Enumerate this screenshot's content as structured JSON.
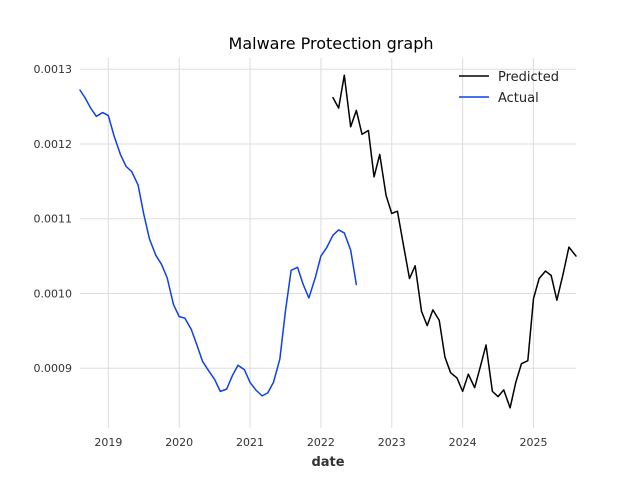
{
  "chart_data": {
    "type": "line",
    "title": "Malware Protection graph",
    "xlabel": "date",
    "ylabel": "",
    "xlim": [
      2018.6,
      2025.6
    ],
    "ylim": [
      0.00082,
      0.001315
    ],
    "grid": true,
    "legend_position": "top-right",
    "x_ticks": [
      2019,
      2020,
      2021,
      2022,
      2023,
      2024,
      2025
    ],
    "x_tick_labels": [
      "2019",
      "2020",
      "2021",
      "2022",
      "2023",
      "2024",
      "2025"
    ],
    "y_ticks": [
      0.0009,
      0.001,
      0.0011,
      0.0012,
      0.0013
    ],
    "y_tick_labels": [
      "0.0009",
      "0.0010",
      "0.0011",
      "0.0012",
      "0.0013"
    ],
    "series": [
      {
        "name": "Predicted",
        "color": "#000000",
        "x": [
          2022.17,
          2022.25,
          2022.33,
          2022.42,
          2022.5,
          2022.58,
          2022.67,
          2022.75,
          2022.83,
          2022.92,
          2023.0,
          2023.08,
          2023.17,
          2023.25,
          2023.33,
          2023.42,
          2023.5,
          2023.58,
          2023.67,
          2023.75,
          2023.83,
          2023.92,
          2024.0,
          2024.08,
          2024.17,
          2024.25,
          2024.33,
          2024.42,
          2024.5,
          2024.58,
          2024.67,
          2024.75,
          2024.83,
          2024.92,
          2025.0,
          2025.08,
          2025.17,
          2025.25,
          2025.33,
          2025.42,
          2025.5,
          2025.6
        ],
        "values": [
          0.001262,
          0.001248,
          0.001292,
          0.001223,
          0.001245,
          0.001213,
          0.001218,
          0.001156,
          0.001186,
          0.001131,
          0.001107,
          0.00111,
          0.001062,
          0.00102,
          0.001037,
          0.000976,
          0.000957,
          0.000978,
          0.000964,
          0.000915,
          0.000894,
          0.000887,
          0.000869,
          0.000892,
          0.000874,
          0.000902,
          0.000931,
          0.000869,
          0.000862,
          0.000871,
          0.000847,
          0.000881,
          0.000906,
          0.00091,
          0.000993,
          0.00102,
          0.00103,
          0.001024,
          0.000991,
          0.001027,
          0.001062,
          0.00105
        ]
      },
      {
        "name": "Actual",
        "color": "#0f40e8",
        "x": [
          2018.6,
          2018.67,
          2018.75,
          2018.83,
          2018.92,
          2019.0,
          2019.08,
          2019.17,
          2019.25,
          2019.33,
          2019.42,
          2019.5,
          2019.58,
          2019.67,
          2019.75,
          2019.83,
          2019.92,
          2020.0,
          2020.08,
          2020.17,
          2020.25,
          2020.33,
          2020.42,
          2020.5,
          2020.58,
          2020.67,
          2020.75,
          2020.83,
          2020.92,
          2021.0,
          2021.08,
          2021.17,
          2021.25,
          2021.33,
          2021.42,
          2021.5,
          2021.58,
          2021.67,
          2021.75,
          2021.83,
          2021.92,
          2022.0,
          2022.08,
          2022.17,
          2022.25,
          2022.33,
          2022.42,
          2022.5
        ],
        "values": [
          0.001272,
          0.001262,
          0.001248,
          0.001237,
          0.001242,
          0.001238,
          0.001211,
          0.001186,
          0.00117,
          0.001163,
          0.001145,
          0.001106,
          0.001073,
          0.001051,
          0.001039,
          0.001021,
          0.000985,
          0.000969,
          0.000967,
          0.000952,
          0.000931,
          0.000909,
          0.000896,
          0.000885,
          0.000869,
          0.000872,
          0.00089,
          0.000904,
          0.000898,
          0.000881,
          0.000871,
          0.000863,
          0.000867,
          0.000881,
          0.000912,
          0.000977,
          0.001031,
          0.001035,
          0.001012,
          0.000994,
          0.001021,
          0.00105,
          0.001061,
          0.001078,
          0.001085,
          0.001081,
          0.001058,
          0.001012
        ]
      }
    ]
  }
}
